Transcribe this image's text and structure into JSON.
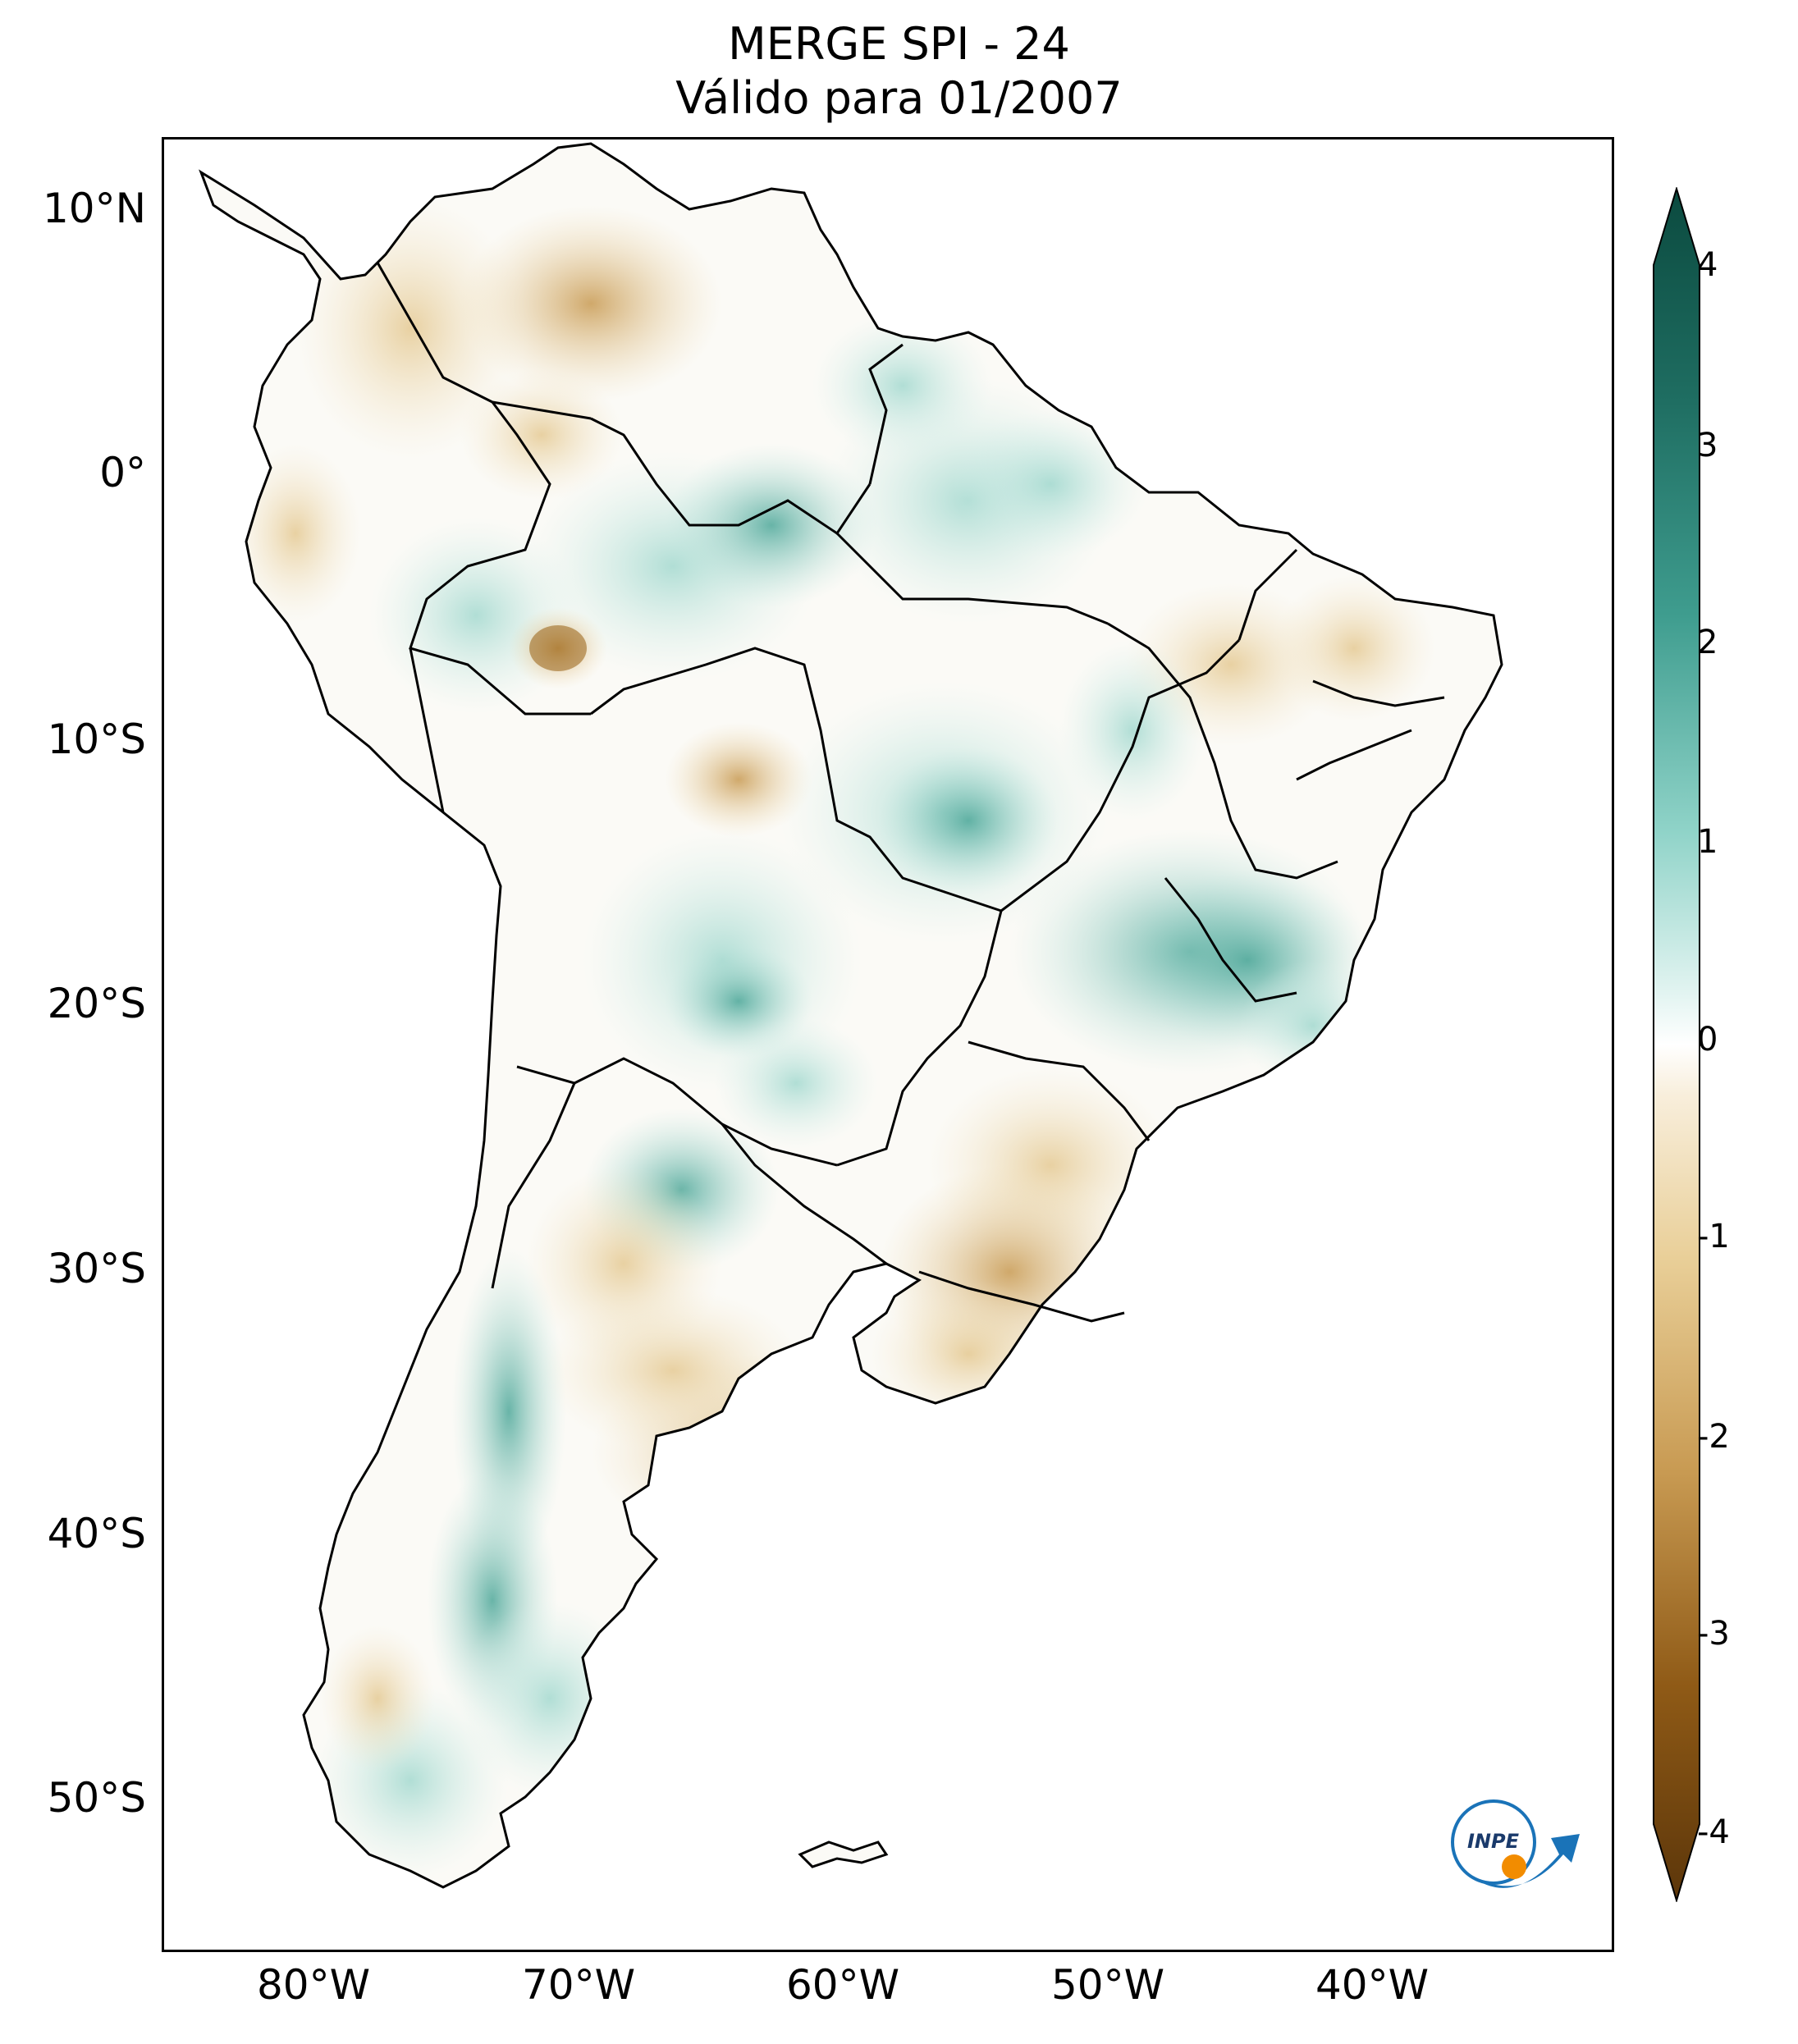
{
  "title": {
    "line1": "MERGE   SPI - 24",
    "line2": "Válido para 01/2007"
  },
  "axes": {
    "lat_ticks": [
      "10°N",
      "0°",
      "10°S",
      "20°S",
      "30°S",
      "40°S",
      "50°S"
    ],
    "lon_ticks": [
      "80°W",
      "70°W",
      "60°W",
      "50°W",
      "40°W"
    ]
  },
  "colorbar": {
    "ticks": [
      "4",
      "3",
      "2",
      "1",
      "0",
      "-1",
      "-2",
      "-3",
      "-4"
    ],
    "colors": {
      "max": "#0b4a3f",
      "high": "#2a8a7b",
      "mid_high": "#8fd3c8",
      "zero": "#ffffff",
      "mid_low": "#e9cf98",
      "low": "#b9822f",
      "min": "#5c360a"
    }
  },
  "logo": {
    "text": "INPE",
    "colors": {
      "blue": "#1a73b8",
      "orange": "#f28c00"
    }
  },
  "map": {
    "land_colors": {
      "neutral": "#fbfaf6",
      "wet": "#bfe6df",
      "wet_strong": "#5fb3a5",
      "dry": "#efdcb2",
      "dry_strong": "#c89a52"
    },
    "border_color": "#000000"
  }
}
